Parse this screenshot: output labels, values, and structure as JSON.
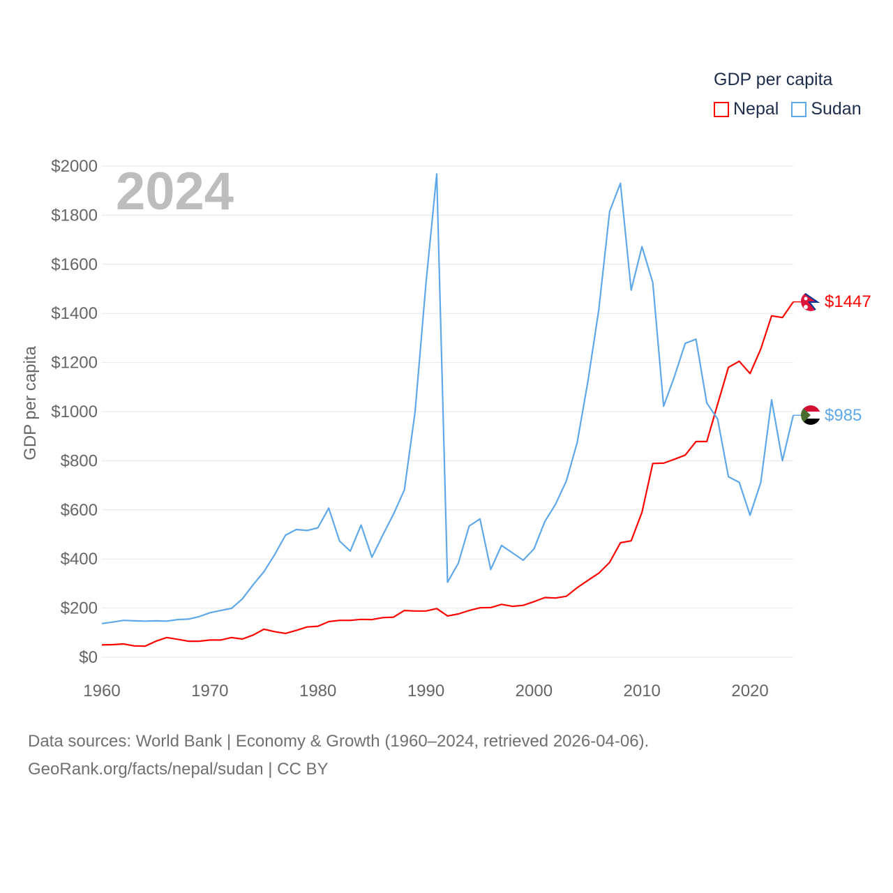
{
  "chart_data": {
    "type": "line",
    "title": "GDP per capita",
    "year_label": "2024",
    "xlabel": "",
    "ylabel": "GDP per capita",
    "xlim": [
      1960,
      2024
    ],
    "ylim": [
      0,
      2000
    ],
    "x_ticks": [
      1960,
      1970,
      1980,
      1990,
      2000,
      2010,
      2020
    ],
    "x_tick_labels": [
      "1960",
      "1970",
      "1980",
      "1990",
      "2000",
      "2010",
      "2020"
    ],
    "y_ticks": [
      0,
      200,
      400,
      600,
      800,
      1000,
      1200,
      1400,
      1600,
      1800,
      2000
    ],
    "y_tick_labels": [
      "$0",
      "$200",
      "$400",
      "$600",
      "$800",
      "$1000",
      "$1200",
      "$1400",
      "$1600",
      "$1800",
      "$2000"
    ],
    "grid": true,
    "legend_position": "top-right",
    "x": [
      1960,
      1961,
      1962,
      1963,
      1964,
      1965,
      1966,
      1967,
      1968,
      1969,
      1970,
      1971,
      1972,
      1973,
      1974,
      1975,
      1976,
      1977,
      1978,
      1979,
      1980,
      1981,
      1982,
      1983,
      1984,
      1985,
      1986,
      1987,
      1988,
      1989,
      1990,
      1991,
      1992,
      1993,
      1994,
      1995,
      1996,
      1997,
      1998,
      1999,
      2000,
      2001,
      2002,
      2003,
      2004,
      2005,
      2006,
      2007,
      2008,
      2009,
      2010,
      2011,
      2012,
      2013,
      2014,
      2015,
      2016,
      2017,
      2018,
      2019,
      2020,
      2021,
      2022,
      2023,
      2024
    ],
    "series": [
      {
        "name": "Nepal",
        "color": "#ff0000",
        "end_label": "$1447",
        "values": [
          50,
          51,
          54,
          46,
          45,
          65,
          80,
          73,
          65,
          65,
          70,
          70,
          80,
          74,
          90,
          114,
          104,
          97,
          109,
          123,
          126,
          145,
          150,
          150,
          154,
          153,
          161,
          163,
          190,
          188,
          188,
          198,
          168,
          176,
          190,
          201,
          202,
          215,
          207,
          211,
          226,
          243,
          241,
          248,
          283,
          313,
          342,
          386,
          466,
          474,
          590,
          789,
          790,
          806,
          823,
          878,
          878,
          1030,
          1180,
          1205,
          1155,
          1255,
          1390,
          1383,
          1447
        ]
      },
      {
        "name": "Sudan",
        "color": "#5ea8ea",
        "end_label": "$985",
        "values": [
          137,
          143,
          150,
          148,
          147,
          148,
          147,
          153,
          155,
          165,
          181,
          190,
          199,
          237,
          295,
          348,
          418,
          497,
          520,
          516,
          527,
          607,
          473,
          432,
          538,
          407,
          497,
          583,
          681,
          1000,
          1520,
          1968,
          305,
          383,
          534,
          563,
          357,
          455,
          425,
          395,
          441,
          552,
          623,
          718,
          874,
          1125,
          1415,
          1815,
          1930,
          1495,
          1672,
          1525,
          1022,
          1143,
          1278,
          1295,
          1035,
          970,
          735,
          712,
          578,
          712,
          1048,
          800,
          985
        ]
      }
    ]
  },
  "footer": {
    "line1": "Data sources: World Bank | Economy & Growth (1960–2024, retrieved 2026-04-06).",
    "line2": "GeoRank.org/facts/nepal/sudan | CC BY"
  }
}
